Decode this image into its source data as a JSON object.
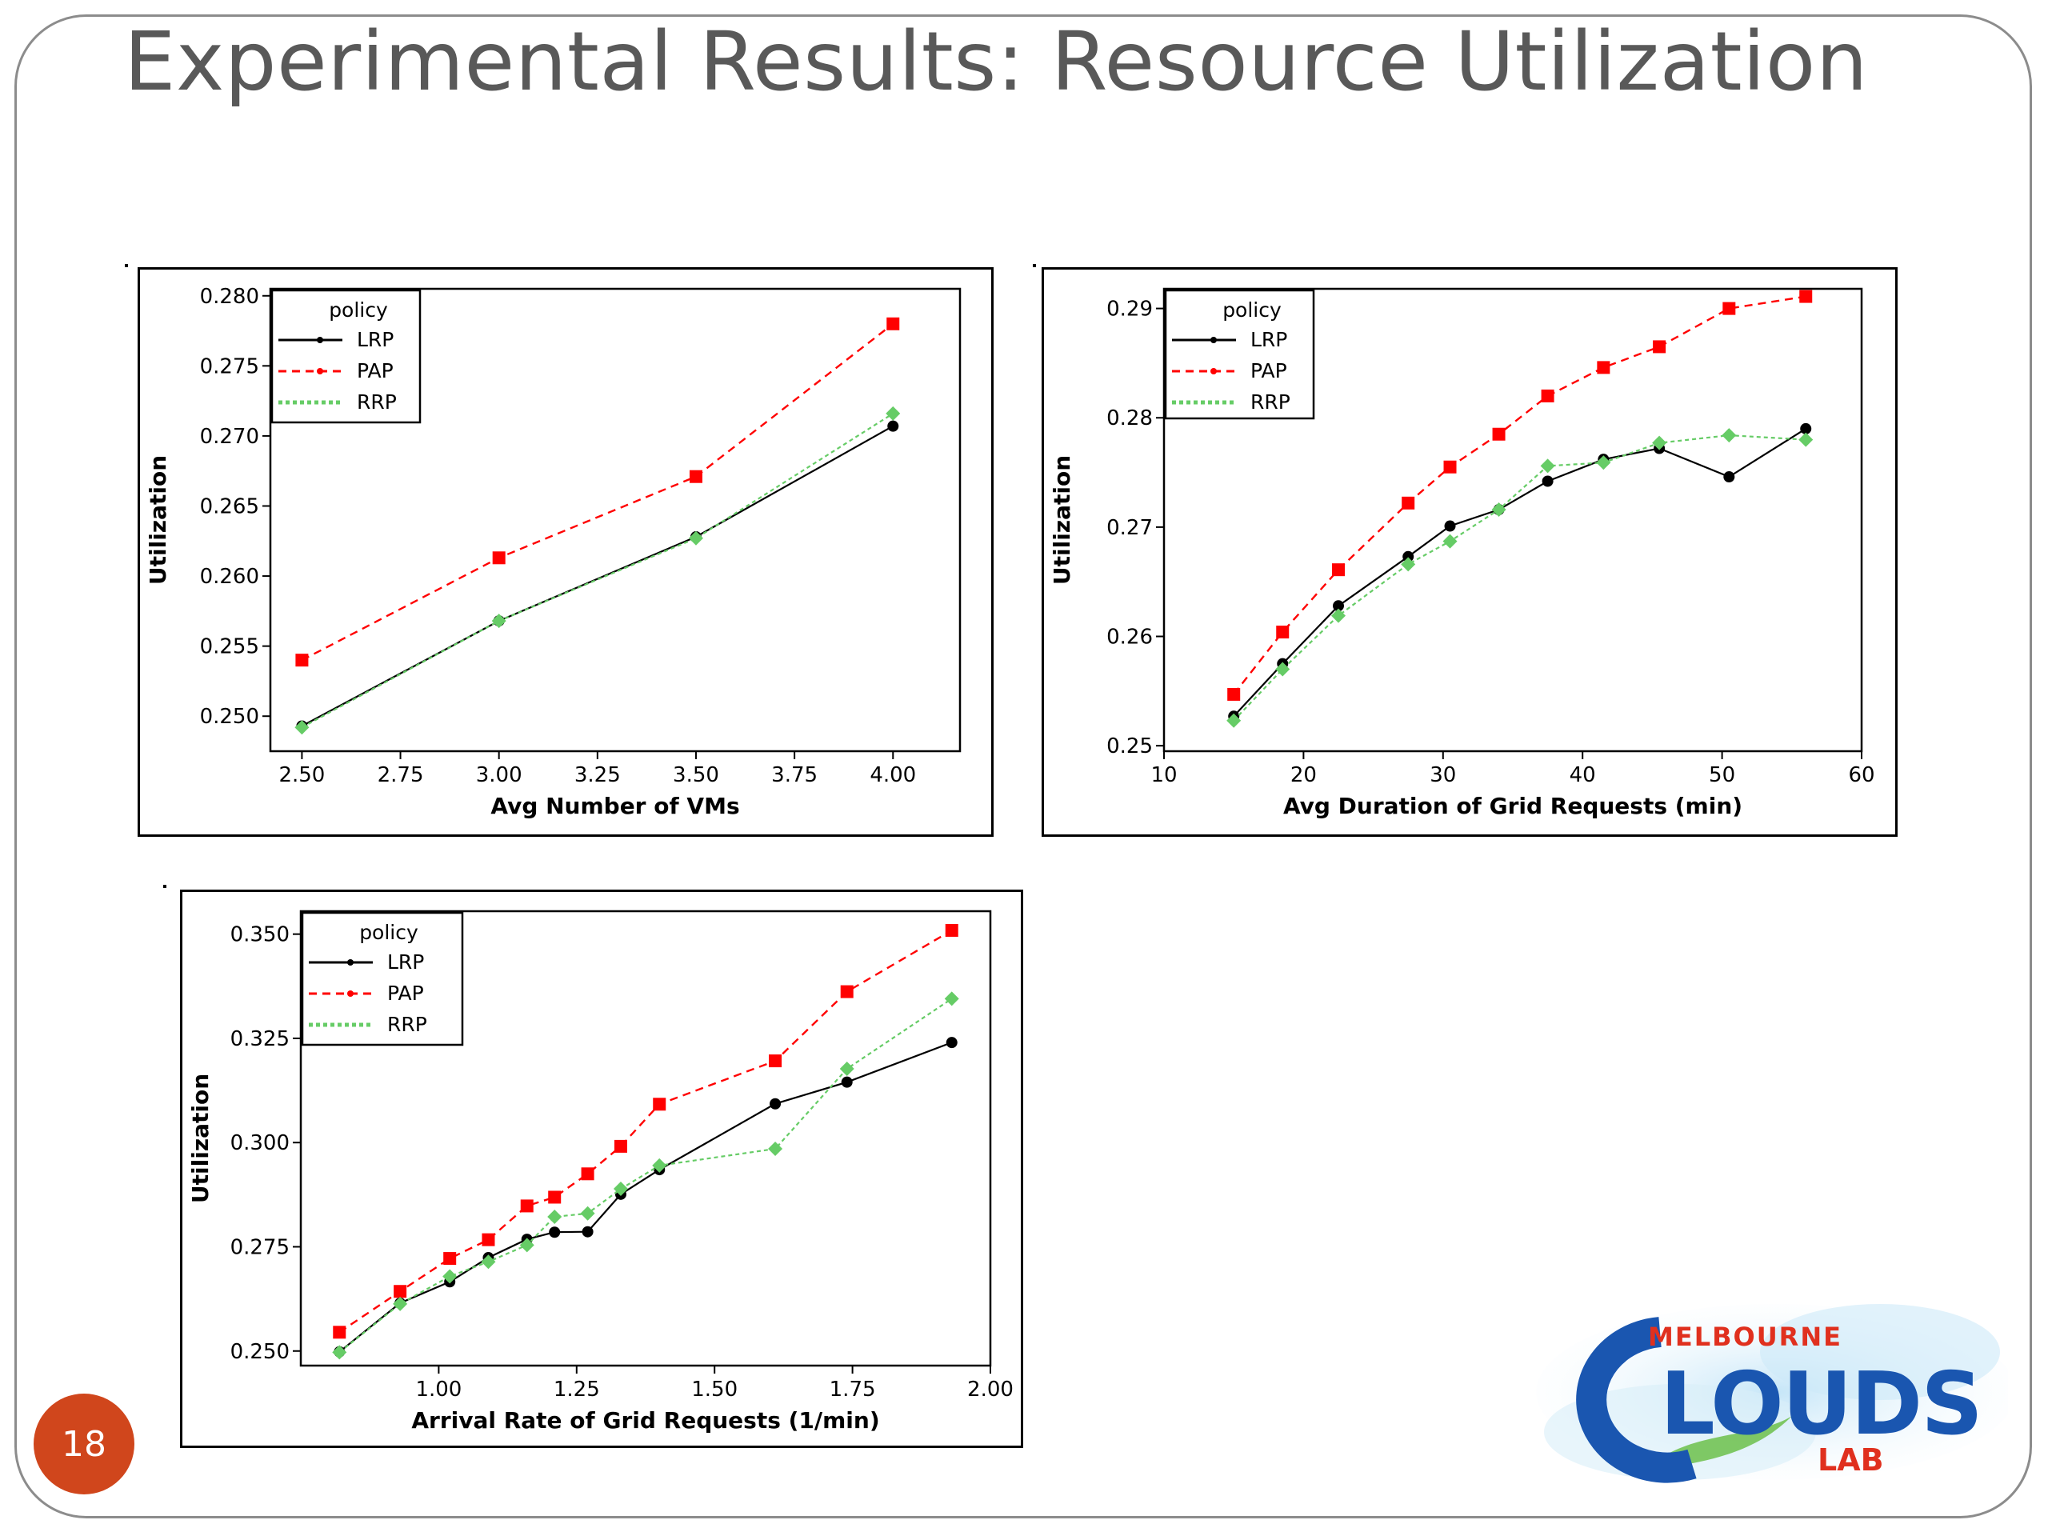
{
  "slide": {
    "title": "Experimental Results: Resource Utilization",
    "page_number": "18",
    "logo": {
      "word1": "MELBOURNE",
      "word2": "CLOUDS",
      "word3": "LAB"
    }
  },
  "colors": {
    "LRP": "#000000",
    "PAP": "#ff0000",
    "RRP": "#66cc66",
    "page_badge": "#d0461c",
    "logo_blue": "#1a56b0",
    "logo_red": "#e0301e"
  },
  "chart_data": [
    {
      "type": "line",
      "xlabel": "Avg Number of VMs",
      "ylabel": "Utilization",
      "xlim": [
        2.42,
        4.17
      ],
      "ylim": [
        0.2475,
        0.2805
      ],
      "xticks": [
        2.5,
        2.75,
        3.0,
        3.25,
        3.5,
        3.75,
        4.0
      ],
      "xtick_labels": [
        "2.50",
        "2.75",
        "3.00",
        "3.25",
        "3.50",
        "3.75",
        "4.00"
      ],
      "yticks": [
        0.25,
        0.255,
        0.26,
        0.265,
        0.27,
        0.275,
        0.28
      ],
      "ytick_labels": [
        "0.250",
        "0.255",
        "0.260",
        "0.265",
        "0.270",
        "0.275",
        "0.280"
      ],
      "legend_title": "policy",
      "legend_position": "top-left",
      "grid": false,
      "series": [
        {
          "name": "LRP",
          "points": [
            [
              2.5,
              0.2493
            ],
            [
              3.0,
              0.2568
            ],
            [
              3.5,
              0.2628
            ],
            [
              4.0,
              0.2707
            ]
          ]
        },
        {
          "name": "PAP",
          "points": [
            [
              2.5,
              0.254
            ],
            [
              3.0,
              0.2613
            ],
            [
              3.5,
              0.2671
            ],
            [
              4.0,
              0.278
            ]
          ]
        },
        {
          "name": "RRP",
          "points": [
            [
              2.5,
              0.2492
            ],
            [
              3.0,
              0.2568
            ],
            [
              3.5,
              0.2627
            ],
            [
              4.0,
              0.2716
            ]
          ]
        }
      ]
    },
    {
      "type": "line",
      "xlabel": "Avg Duration of Grid Requests (min)",
      "ylabel": "Utilization",
      "xlim": [
        10,
        60
      ],
      "ylim": [
        0.2495,
        0.2918
      ],
      "xticks": [
        10,
        20,
        30,
        40,
        50,
        60
      ],
      "xtick_labels": [
        "10",
        "20",
        "30",
        "40",
        "50",
        "60"
      ],
      "yticks": [
        0.25,
        0.26,
        0.27,
        0.28,
        0.29
      ],
      "ytick_labels": [
        "0.25",
        "0.26",
        "0.27",
        "0.28",
        "0.29"
      ],
      "legend_title": "policy",
      "legend_position": "top-left",
      "grid": false,
      "series": [
        {
          "name": "LRP",
          "points": [
            [
              15,
              0.2527
            ],
            [
              18.5,
              0.2575
            ],
            [
              22.5,
              0.2628
            ],
            [
              27.5,
              0.2673
            ],
            [
              30.5,
              0.2701
            ],
            [
              34,
              0.2716
            ],
            [
              37.5,
              0.2742
            ],
            [
              41.5,
              0.2762
            ],
            [
              45.5,
              0.2772
            ],
            [
              50.5,
              0.2746
            ],
            [
              56,
              0.279
            ]
          ]
        },
        {
          "name": "PAP",
          "points": [
            [
              15,
              0.2547
            ],
            [
              18.5,
              0.2604
            ],
            [
              22.5,
              0.2661
            ],
            [
              27.5,
              0.2722
            ],
            [
              30.5,
              0.2755
            ],
            [
              34,
              0.2785
            ],
            [
              37.5,
              0.282
            ],
            [
              41.5,
              0.2846
            ],
            [
              45.5,
              0.2865
            ],
            [
              50.5,
              0.29
            ],
            [
              56,
              0.2911
            ]
          ]
        },
        {
          "name": "RRP",
          "points": [
            [
              15,
              0.2523
            ],
            [
              18.5,
              0.257
            ],
            [
              22.5,
              0.2619
            ],
            [
              27.5,
              0.2666
            ],
            [
              30.5,
              0.2687
            ],
            [
              34,
              0.2716
            ],
            [
              37.5,
              0.2756
            ],
            [
              41.5,
              0.2759
            ],
            [
              45.5,
              0.2777
            ],
            [
              50.5,
              0.2784
            ],
            [
              56,
              0.278
            ]
          ]
        }
      ]
    },
    {
      "type": "line",
      "xlabel": "Arrival Rate of Grid Requests (1/min)",
      "ylabel": "Utilization",
      "xlim": [
        0.75,
        2.0
      ],
      "ylim": [
        0.2465,
        0.3555
      ],
      "xticks": [
        1.0,
        1.25,
        1.5,
        1.75,
        2.0
      ],
      "xtick_labels": [
        "1.00",
        "1.25",
        "1.50",
        "1.75",
        "2.00"
      ],
      "yticks": [
        0.25,
        0.275,
        0.3,
        0.325,
        0.35
      ],
      "ytick_labels": [
        "0.250",
        "0.275",
        "0.300",
        "0.325",
        "0.350"
      ],
      "legend_title": "policy",
      "legend_position": "top-left",
      "grid": false,
      "series": [
        {
          "name": "LRP",
          "points": [
            [
              0.82,
              0.2498
            ],
            [
              0.93,
              0.2615
            ],
            [
              1.02,
              0.2666
            ],
            [
              1.09,
              0.2724
            ],
            [
              1.16,
              0.2768
            ],
            [
              1.21,
              0.2785
            ],
            [
              1.27,
              0.2786
            ],
            [
              1.33,
              0.2876
            ],
            [
              1.4,
              0.2935
            ],
            [
              1.61,
              0.3093
            ],
            [
              1.74,
              0.3145
            ],
            [
              1.93,
              0.324
            ]
          ]
        },
        {
          "name": "PAP",
          "points": [
            [
              0.82,
              0.2545
            ],
            [
              0.93,
              0.2643
            ],
            [
              1.02,
              0.2722
            ],
            [
              1.09,
              0.2767
            ],
            [
              1.16,
              0.2848
            ],
            [
              1.21,
              0.2869
            ],
            [
              1.27,
              0.2925
            ],
            [
              1.33,
              0.2991
            ],
            [
              1.4,
              0.3092
            ],
            [
              1.61,
              0.3196
            ],
            [
              1.74,
              0.3362
            ],
            [
              1.93,
              0.3509
            ]
          ]
        },
        {
          "name": "RRP",
          "points": [
            [
              0.82,
              0.2497
            ],
            [
              0.93,
              0.2613
            ],
            [
              1.02,
              0.2679
            ],
            [
              1.09,
              0.2714
            ],
            [
              1.16,
              0.2754
            ],
            [
              1.21,
              0.2822
            ],
            [
              1.27,
              0.283
            ],
            [
              1.33,
              0.2889
            ],
            [
              1.4,
              0.2945
            ],
            [
              1.61,
              0.2985
            ],
            [
              1.74,
              0.3177
            ],
            [
              1.93,
              0.3345
            ]
          ]
        }
      ]
    }
  ]
}
